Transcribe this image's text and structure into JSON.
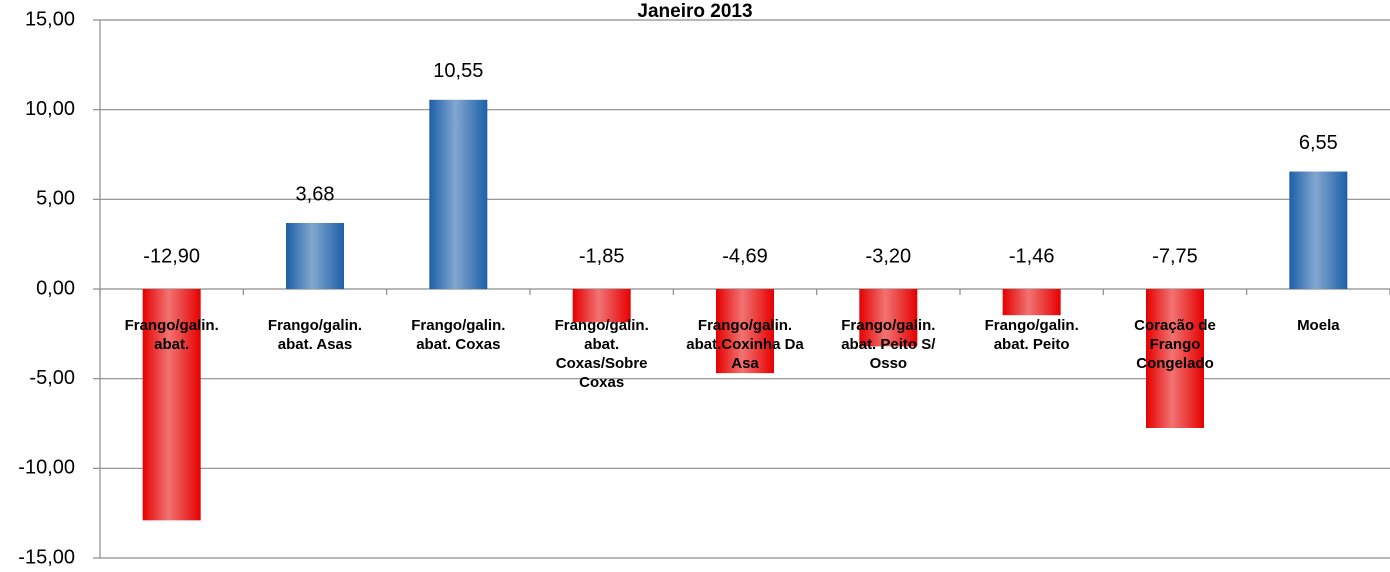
{
  "chart_data": {
    "type": "bar",
    "title": "Janeiro 2013",
    "categories": [
      "Frango/galin. abat.",
      "Frango/galin. abat. Asas",
      "Frango/galin. abat. Coxas",
      "Frango/galin. abat. Coxas/Sobre Coxas",
      "Frango/galin. abat.Coxinha Da Asa",
      "Frango/galin. abat. Peito S/ Osso",
      "Frango/galin. abat. Peito",
      "Coração de Frango Congelado",
      "Moela"
    ],
    "values": [
      -12.9,
      3.68,
      10.55,
      -1.85,
      -4.69,
      -3.2,
      -1.46,
      -7.75,
      6.55
    ],
    "value_labels": [
      "-12,90",
      "3,68",
      "10,55",
      "-1,85",
      "-4,69",
      "-3,20",
      "-1,46",
      "-7,75",
      "6,55"
    ],
    "color": "#1c5fa8",
    "negative_color": "#e60000",
    "ylim": [
      -15,
      15
    ],
    "yticks": [
      {
        "value": -15,
        "label": "-15,00"
      },
      {
        "value": -10,
        "label": "-10,00"
      },
      {
        "value": -5,
        "label": "-5,00"
      },
      {
        "value": 0,
        "label": "0,00"
      },
      {
        "value": 5,
        "label": "5,00"
      },
      {
        "value": 10,
        "label": "10,00"
      },
      {
        "value": 15,
        "label": "15,00"
      }
    ],
    "grid": true
  }
}
